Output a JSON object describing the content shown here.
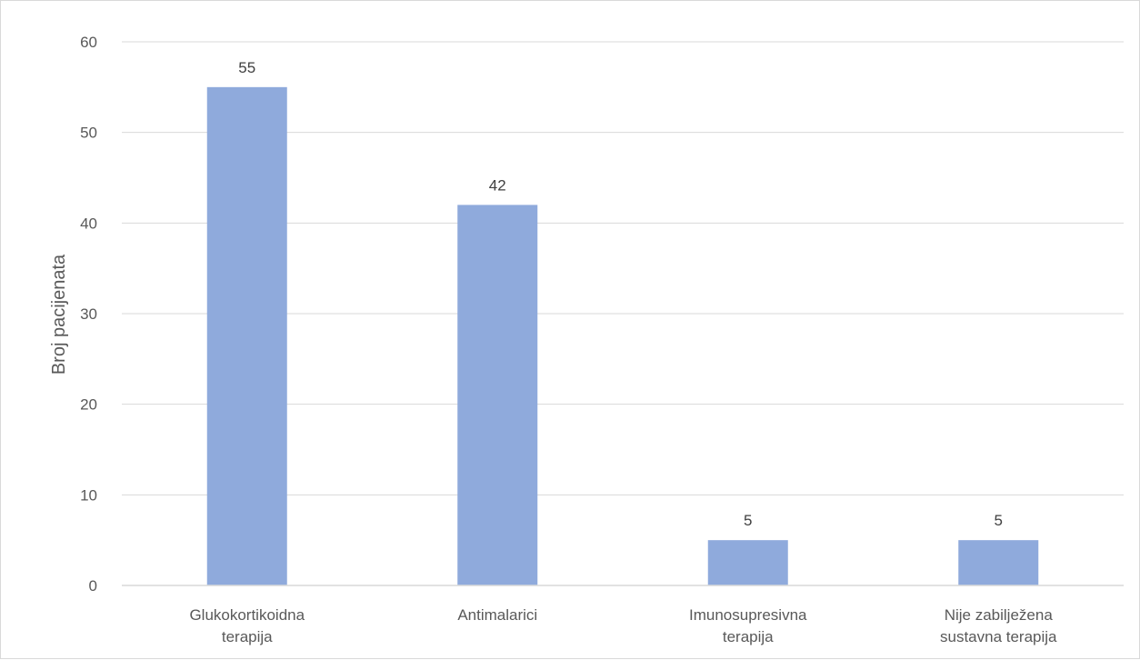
{
  "chart_data": {
    "type": "bar",
    "title": "",
    "xlabel": "",
    "ylabel": "Broj pacijenata",
    "categories": [
      [
        "Glukokortikoidna",
        "terapija"
      ],
      [
        "Antimalarici"
      ],
      [
        "Imunosupresivna",
        "terapija"
      ],
      [
        "Nije zabilježena",
        "sustavna terapija"
      ]
    ],
    "values": [
      55,
      42,
      5,
      5
    ],
    "data_labels": [
      "55",
      "42",
      "5",
      "5"
    ],
    "ylim": [
      0,
      60
    ],
    "yticks": [
      0,
      10,
      20,
      30,
      40,
      50,
      60
    ],
    "grid": true,
    "legend": "none",
    "colors": {
      "bar": "#8faadc",
      "grid": "#d9d9d9",
      "axis": "#d9d9d9",
      "text": "#595959"
    }
  }
}
